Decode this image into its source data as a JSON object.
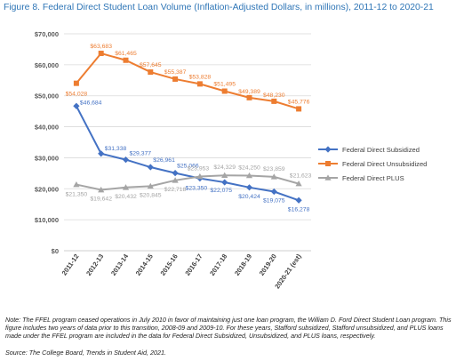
{
  "figure": {
    "title": "Figure 8. Federal Direct Student Loan Volume (Inflation-Adjusted Dollars, in millions), 2011-12 to 2020-21",
    "note": "Note: The FFEL program ceased operations in July 2010 in favor of maintaining just one loan program, the William D. Ford Direct Student Loan program. This figure includes two years of data prior to this transition, 2008-09 and 2009-10. For these years, Stafford subsidized, Stafford unsubsidized, and PLUS loans made under the FFEL program are included in the data for Federal Direct Subsidized, Unsubsidized, and PLUS loans, respectively.",
    "source": "Source: The College Board, Trends in Student Aid, 2021."
  },
  "chart_data": {
    "type": "line",
    "categories": [
      "2011-12",
      "2012-13",
      "2013-14",
      "2014-15",
      "2015-16",
      "2016-17",
      "2017-18",
      "2018-19",
      "2019-20",
      "2020-21 (est)"
    ],
    "ylim": [
      0,
      70000
    ],
    "y_ticks": [
      "$0",
      "$10,000",
      "$20,000",
      "$30,000",
      "$40,000",
      "$50,000",
      "$60,000",
      "$70,000"
    ],
    "grid": true,
    "legend_position": "right",
    "series": [
      {
        "name": "Federal Direct Subsidized",
        "color": "#4472c4",
        "marker": "diamond",
        "values": [
          46684,
          31338,
          29377,
          26961,
          25066,
          23350,
          22075,
          20424,
          19075,
          16278
        ],
        "labels": [
          "$46,684",
          "$31,338",
          "$29,377",
          "$26,961",
          "$25,066",
          "$23,350",
          "$22,075",
          "$20,424",
          "$19,075",
          "$16,278"
        ]
      },
      {
        "name": "Federal Direct Unsubsidized",
        "color": "#ed7d31",
        "marker": "square",
        "values": [
          54028,
          63683,
          61465,
          57645,
          55387,
          53828,
          51495,
          49389,
          48230,
          45776
        ],
        "labels": [
          "$54,028",
          "$63,683",
          "$61,465",
          "$57,645",
          "$55,387",
          "$53,828",
          "$51,495",
          "$49,389",
          "$48,230",
          "$45,776"
        ]
      },
      {
        "name": "Federal Direct PLUS",
        "color": "#a5a5a5",
        "marker": "triangle",
        "values": [
          21350,
          19642,
          20432,
          20845,
          22718,
          23953,
          24329,
          24250,
          23859,
          21623
        ],
        "labels": [
          "$21,350",
          "$19,642",
          "$20,432",
          "$20,845",
          "$22,718",
          "$23,953",
          "$24,329",
          "$24,250",
          "$23,859",
          "$21,623"
        ]
      }
    ]
  }
}
